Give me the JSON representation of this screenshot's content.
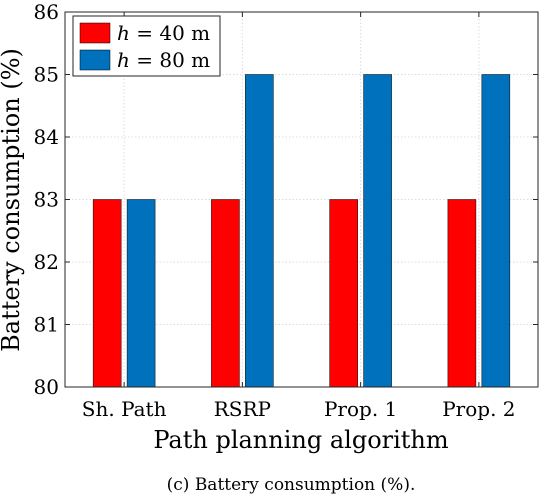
{
  "chart_data": {
    "type": "bar",
    "title": "",
    "xlabel": "Path planning algorithm",
    "ylabel": "Battery consumption (%)",
    "categories": [
      "Sh. Path",
      "RSRP",
      "Prop. 1",
      "Prop. 2"
    ],
    "series": [
      {
        "name_symbol": "h",
        "name_rest": " = 40 m",
        "color": "#ff0000",
        "values": [
          83,
          83,
          83,
          83
        ]
      },
      {
        "name_symbol": "h",
        "name_rest": " = 80 m",
        "color": "#0072bd",
        "values": [
          83,
          85,
          85,
          85
        ]
      }
    ],
    "ylim": [
      80,
      86
    ],
    "yticks": [
      "80",
      "81",
      "82",
      "83",
      "84",
      "85",
      "86"
    ],
    "grid": true,
    "legend_position": "top-left"
  },
  "caption": "(c) Battery consumption (%)."
}
